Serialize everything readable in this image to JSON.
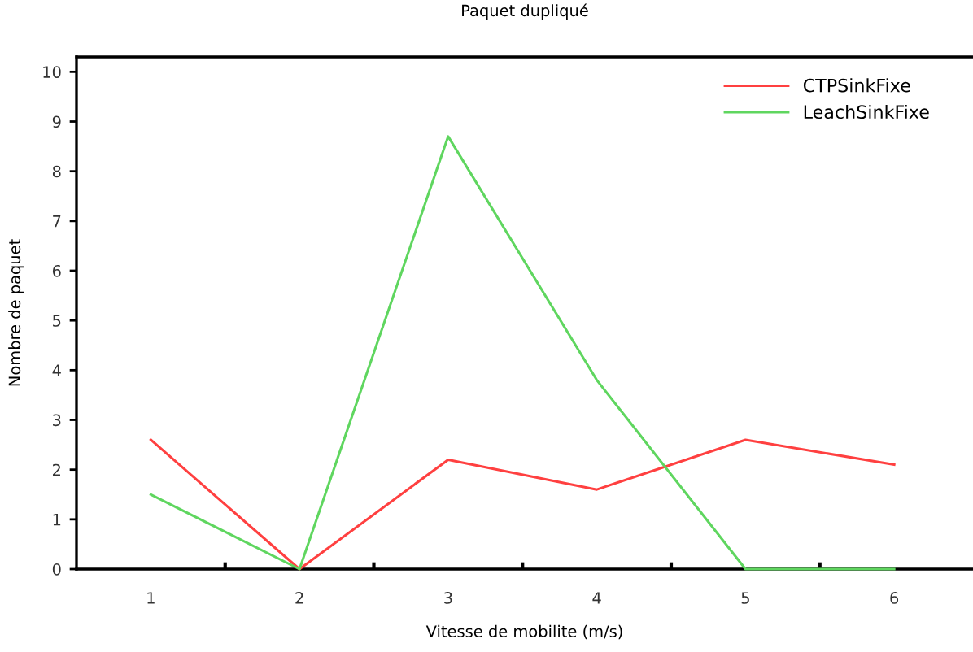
{
  "chart_data": {
    "type": "line",
    "title": "Paquet dupliqué",
    "xlabel": "Vitesse de mobilite (m/s)",
    "ylabel": "Nombre de paquet",
    "categories": [
      "1",
      "2",
      "3",
      "4",
      "5",
      "6"
    ],
    "series": [
      {
        "name": "CTPSinkFixe",
        "color": "#ff4040",
        "values": [
          2.6,
          0,
          2.2,
          1.6,
          2.6,
          2.1
        ]
      },
      {
        "name": "LeachSinkFixe",
        "color": "#5fd65f",
        "values": [
          1.5,
          0,
          8.7,
          3.8,
          0,
          0
        ]
      }
    ],
    "ylim": [
      0,
      10.3
    ],
    "yticks": [
      0,
      1,
      2,
      3,
      4,
      5,
      6,
      7,
      8,
      9,
      10
    ],
    "grid": false,
    "legend": "top right",
    "marker": "none",
    "line_style": "solid"
  }
}
